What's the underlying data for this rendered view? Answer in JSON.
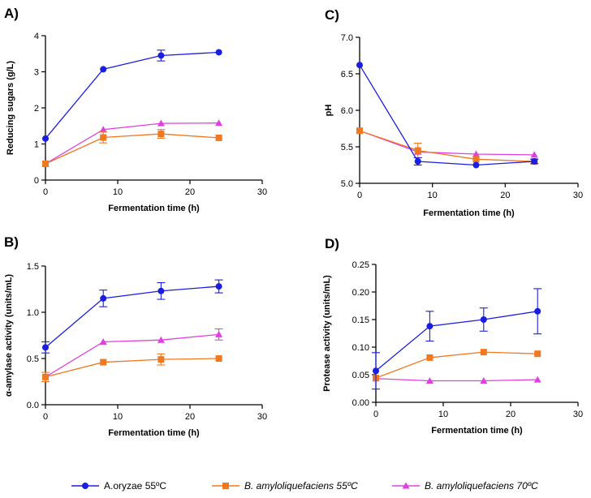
{
  "colors": {
    "oryzae": "#1a1ee0",
    "amylo55": "#f07820",
    "amylo70": "#e040e0",
    "axis": "#000000"
  },
  "legend": [
    {
      "name": "A.oryzae 55ºC",
      "italic": false,
      "marker": "circle",
      "color_key": "oryzae"
    },
    {
      "name": "B. amyloliquefaciens 55ºC",
      "italic": true,
      "marker": "square",
      "color_key": "amylo55"
    },
    {
      "name": "B. amyloliquefaciens 70ºC",
      "italic": true,
      "marker": "triangle",
      "color_key": "amylo70"
    }
  ],
  "chart_data": [
    {
      "panel": "A)",
      "type": "line",
      "xlabel": "Fermentation time (h)",
      "ylabel": "Reducing sugars (g/L)",
      "xlim": [
        0,
        30
      ],
      "ylim": [
        0,
        4
      ],
      "xticks": [
        "0",
        "10",
        "20",
        "30"
      ],
      "yticks": [
        "0",
        "1",
        "2",
        "3",
        "4"
      ],
      "x": [
        0,
        8,
        16,
        24
      ],
      "series": [
        {
          "name": "A.oryzae 55ºC",
          "values": [
            1.15,
            3.07,
            3.45,
            3.54
          ],
          "errors": [
            0,
            0,
            0.15,
            0
          ]
        },
        {
          "name": "B. amyloliquefaciens 55ºC",
          "values": [
            0.45,
            1.18,
            1.28,
            1.17
          ],
          "errors": [
            0,
            0.15,
            0.12,
            0
          ]
        },
        {
          "name": "B. amyloliquefaciens 70ºC",
          "values": [
            0.45,
            1.4,
            1.57,
            1.58
          ],
          "errors": [
            0,
            0,
            0,
            0
          ]
        }
      ]
    },
    {
      "panel": "C)",
      "type": "line",
      "xlabel": "Fermentation time (h)",
      "ylabel": "pH",
      "xlim": [
        0,
        30
      ],
      "ylim": [
        5.0,
        7.0
      ],
      "xticks": [
        "0",
        "10",
        "20",
        "30"
      ],
      "yticks": [
        "5.0",
        "5.5",
        "6.0",
        "6.5",
        "7.0"
      ],
      "x": [
        0,
        8,
        16,
        24
      ],
      "series": [
        {
          "name": "A.oryzae 55ºC",
          "values": [
            6.62,
            5.3,
            5.25,
            5.3
          ],
          "errors": [
            0,
            0.05,
            0,
            0.03
          ]
        },
        {
          "name": "B. amyloliquefaciens 55ºC",
          "values": [
            5.72,
            5.45,
            5.33,
            5.3
          ],
          "errors": [
            0,
            0.1,
            0,
            0
          ]
        },
        {
          "name": "B. amyloliquefaciens 70ºC",
          "values": [
            5.72,
            5.43,
            5.4,
            5.39
          ],
          "errors": [
            0,
            0,
            0,
            0
          ]
        }
      ]
    },
    {
      "panel": "B)",
      "type": "line",
      "xlabel": "Fermentation time (h)",
      "ylabel": "α-amylase activity (units/mL)",
      "xlim": [
        0,
        30
      ],
      "ylim": [
        0,
        1.5
      ],
      "xticks": [
        "0",
        "10",
        "20",
        "30"
      ],
      "yticks": [
        "0.0",
        "0.5",
        "1.0",
        "1.5"
      ],
      "x": [
        0,
        8,
        16,
        24
      ],
      "series": [
        {
          "name": "A.oryzae 55ºC",
          "values": [
            0.62,
            1.15,
            1.23,
            1.28
          ],
          "errors": [
            0.06,
            0.09,
            0.09,
            0.07
          ]
        },
        {
          "name": "B. amyloliquefaciens 55ºC",
          "values": [
            0.3,
            0.46,
            0.49,
            0.5
          ],
          "errors": [
            0.05,
            0,
            0.06,
            0
          ]
        },
        {
          "name": "B. amyloliquefaciens 70ºC",
          "values": [
            0.3,
            0.68,
            0.7,
            0.76
          ],
          "errors": [
            0,
            0,
            0,
            0.06
          ]
        }
      ]
    },
    {
      "panel": "D)",
      "type": "line",
      "xlabel": "Fermentation time (h)",
      "ylabel": "Protease activity  (units/mL)",
      "xlim": [
        0,
        30
      ],
      "ylim": [
        0,
        0.25
      ],
      "xticks": [
        "0",
        "10",
        "20",
        "30"
      ],
      "yticks": [
        "0.00",
        "0.05",
        "0.10",
        "0.15",
        "0.20",
        "0.25"
      ],
      "x": [
        0,
        8,
        16,
        24
      ],
      "series": [
        {
          "name": "A.oryzae 55ºC",
          "values": [
            0.057,
            0.138,
            0.15,
            0.165
          ],
          "errors": [
            0.033,
            0.027,
            0.021,
            0.041
          ]
        },
        {
          "name": "B. amyloliquefaciens 55ºC",
          "values": [
            0.044,
            0.081,
            0.091,
            0.088
          ],
          "errors": [
            0,
            0,
            0,
            0
          ]
        },
        {
          "name": "B. amyloliquefaciens 70ºC",
          "values": [
            0.043,
            0.039,
            0.039,
            0.041
          ],
          "errors": [
            0,
            0,
            0,
            0
          ]
        }
      ]
    }
  ]
}
